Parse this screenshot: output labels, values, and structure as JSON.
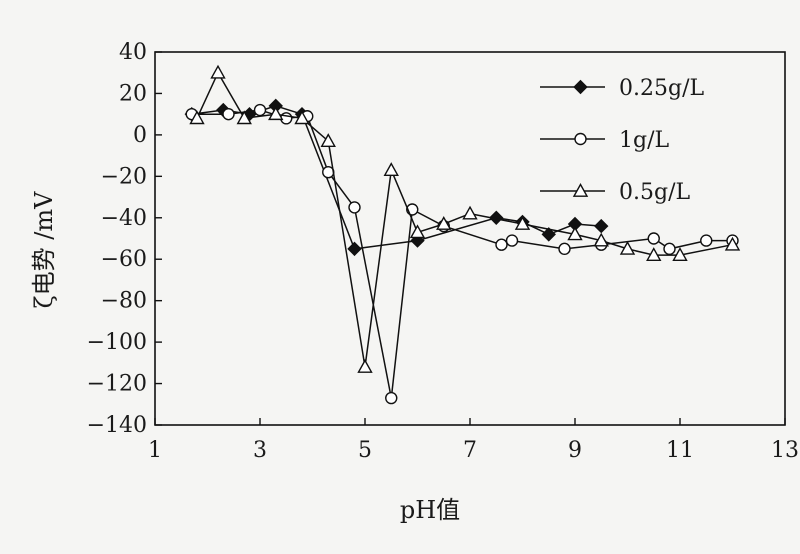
{
  "chart_data": {
    "type": "line",
    "xlabel": "pH值",
    "ylabel": "ζ电势 /mV",
    "xlim": [
      1,
      13
    ],
    "ylim": [
      -140,
      40
    ],
    "xticks": [
      1,
      3,
      5,
      7,
      9,
      11,
      13
    ],
    "yticks": [
      40,
      20,
      0,
      -20,
      -40,
      -60,
      -80,
      -100,
      -120,
      -140
    ],
    "grid": false,
    "legend_position": "top-right",
    "series": [
      {
        "name": "0.25g/L",
        "marker": "diamond-filled",
        "x": [
          1.7,
          2.3,
          2.8,
          3.3,
          3.8,
          4.8,
          6.0,
          7.5,
          8.0,
          8.5,
          9.0,
          9.5
        ],
        "y": [
          10,
          12,
          10,
          14,
          10,
          -55,
          -51,
          -40,
          -42,
          -48,
          -43,
          -44
        ]
      },
      {
        "name": "1g/L",
        "marker": "circle-open",
        "x": [
          1.7,
          2.4,
          3.0,
          3.5,
          3.9,
          4.3,
          4.8,
          5.5,
          5.9,
          6.5,
          7.6,
          7.8,
          8.8,
          9.5,
          10.5,
          10.8,
          11.5,
          12.0
        ],
        "y": [
          10,
          10,
          12,
          8,
          9,
          -18,
          -35,
          -127,
          -36,
          -44,
          -53,
          -51,
          -55,
          -53,
          -50,
          -55,
          -51,
          -51
        ]
      },
      {
        "name": "0.5g/L",
        "marker": "triangle-open",
        "x": [
          1.8,
          2.2,
          2.7,
          3.3,
          3.8,
          4.3,
          5.0,
          5.5,
          6.0,
          6.5,
          7.0,
          8.0,
          9.0,
          9.5,
          10.0,
          10.5,
          11.0,
          12.0
        ],
        "y": [
          8,
          30,
          8,
          10,
          8,
          -3,
          -112,
          -17,
          -47,
          -43,
          -38,
          -43,
          -48,
          -51,
          -55,
          -58,
          -58,
          -53
        ]
      }
    ]
  }
}
